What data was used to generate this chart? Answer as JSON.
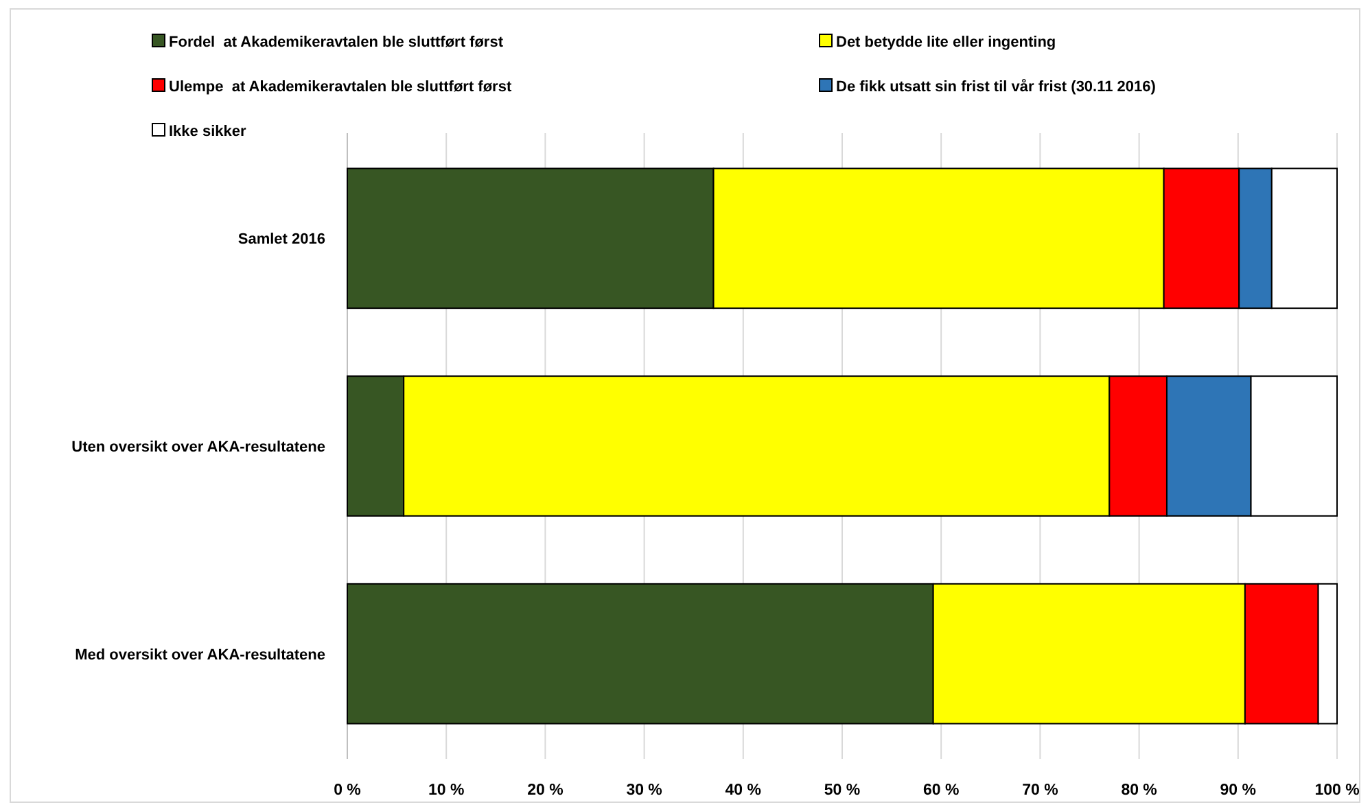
{
  "chart_data": {
    "type": "bar",
    "orientation": "horizontal",
    "stacked": true,
    "categories": [
      "Samlet 2016",
      "Uten oversikt over AKA-resultatene",
      "Med oversikt over AKA-resultatene"
    ],
    "series": [
      {
        "name": "Fordel  at Akademikeravtalen ble sluttført først",
        "color": "#375623",
        "values": [
          37,
          5.7,
          59.2
        ]
      },
      {
        "name": "Det betydde lite eller ingenting",
        "color": "#ffff00",
        "values": [
          45.5,
          71.3,
          31.5
        ]
      },
      {
        "name": "Ulempe  at Akademikeravtalen ble sluttført først",
        "color": "#ff0000",
        "values": [
          7.6,
          5.8,
          7.4
        ]
      },
      {
        "name": "De fikk utsatt sin frist til vår frist (30.11 2016)",
        "color": "#2e75b6",
        "values": [
          3.3,
          8.5,
          null
        ]
      },
      {
        "name": "Ikke sikker",
        "color": "#ffffff",
        "values": [
          6.6,
          8.7,
          1.9
        ]
      }
    ],
    "xlim": [
      0,
      100
    ],
    "xticks": [
      {
        "value": 0,
        "label": "0 %"
      },
      {
        "value": 10,
        "label": "10 %"
      },
      {
        "value": 20,
        "label": "20 %"
      },
      {
        "value": 30,
        "label": "30 %"
      },
      {
        "value": 40,
        "label": "40 %"
      },
      {
        "value": 50,
        "label": "50 %"
      },
      {
        "value": 60,
        "label": "60 %"
      },
      {
        "value": 70,
        "label": "70 %"
      },
      {
        "value": 80,
        "label": "80 %"
      },
      {
        "value": 90,
        "label": "90 %"
      },
      {
        "value": 100,
        "label": "100 %"
      }
    ],
    "grid": "x",
    "legend": "top"
  }
}
